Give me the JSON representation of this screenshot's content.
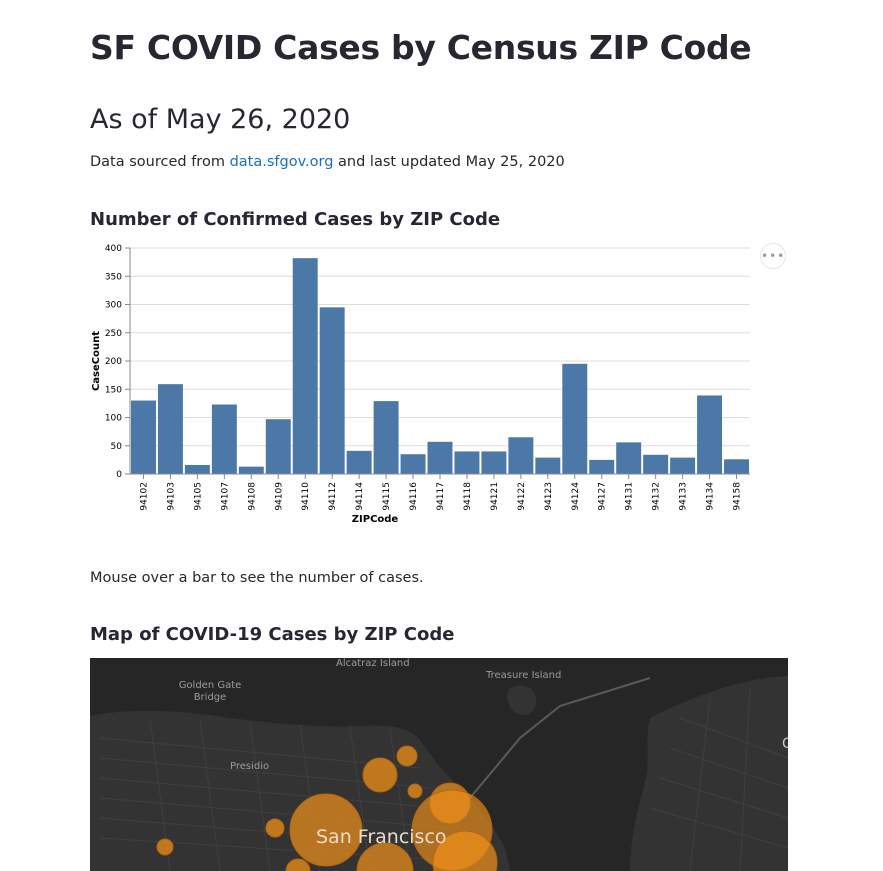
{
  "page": {
    "title": "SF COVID Cases by Census ZIP Code",
    "subtitle": "As of May 26, 2020",
    "source_prefix": "Data sourced from ",
    "source_link": "data.sfgov.org",
    "source_suffix": " and last updated May 25, 2020",
    "chart_heading": "Number of Confirmed Cases by ZIP Code",
    "hint": "Mouse over a bar to see the number of cases.",
    "map_heading": "Map of COVID-19 Cases by ZIP Code",
    "menu_glyph": "•••"
  },
  "colors": {
    "bar": "#4c78a8",
    "map_bg": "#262626",
    "bubble": "#f0901a"
  },
  "chart_data": {
    "type": "bar",
    "categories": [
      "94102",
      "94103",
      "94105",
      "94107",
      "94108",
      "94109",
      "94110",
      "94112",
      "94114",
      "94115",
      "94116",
      "94117",
      "94118",
      "94121",
      "94122",
      "94123",
      "94124",
      "94127",
      "94131",
      "94132",
      "94133",
      "94134",
      "94158"
    ],
    "values": [
      130,
      159,
      16,
      123,
      13,
      97,
      382,
      295,
      41,
      129,
      35,
      57,
      40,
      40,
      65,
      29,
      195,
      25,
      56,
      34,
      29,
      139,
      26
    ],
    "xlabel": "ZIPCode",
    "ylabel": "CaseCount",
    "ylim": [
      0,
      400
    ],
    "yticks": [
      0,
      50,
      100,
      150,
      200,
      250,
      300,
      350,
      400
    ],
    "grid": true
  },
  "map": {
    "labels": [
      "Alcatraz Island",
      "Treasure Island",
      "Golden Gate",
      "Bridge",
      "Presidio",
      "San Francisco",
      "O"
    ],
    "bubble_icon": "case-bubble"
  }
}
